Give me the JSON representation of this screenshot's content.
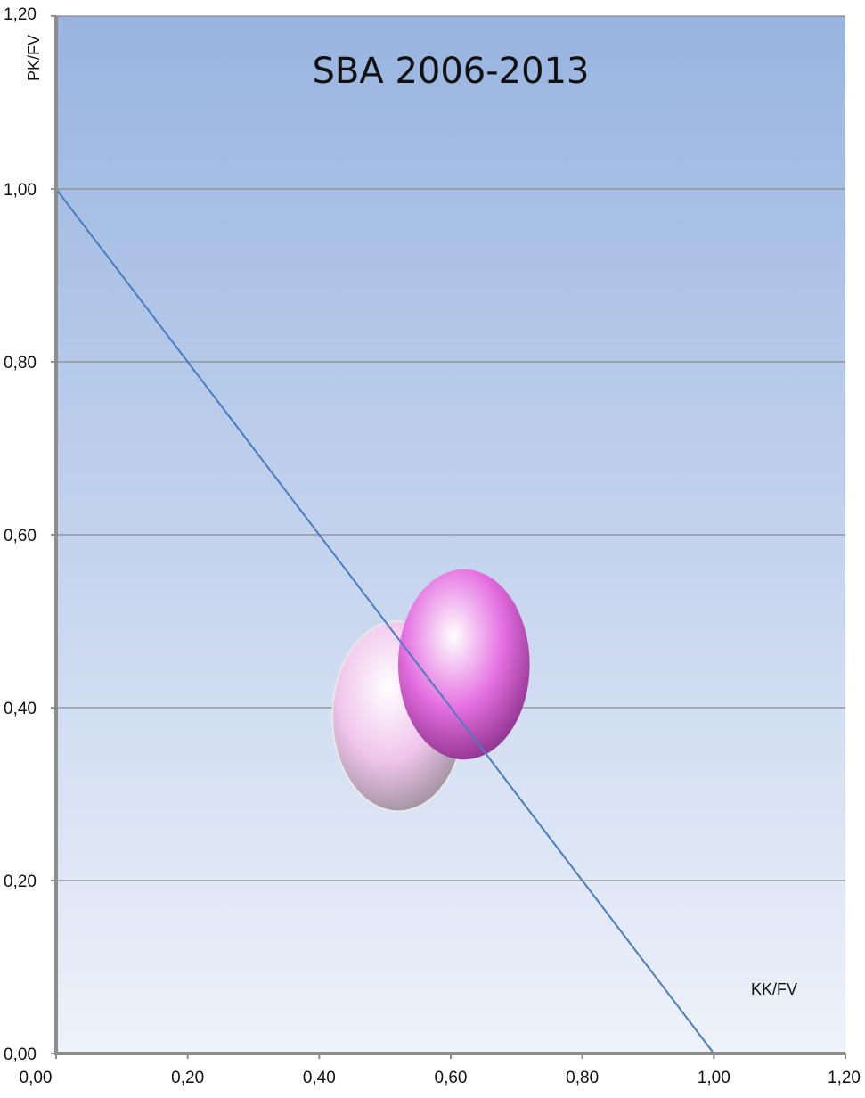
{
  "chart_data": {
    "type": "scatter",
    "title": "SBA 2006-2013",
    "xlabel": "KK/FV",
    "ylabel": "PK/FV",
    "xlim": [
      0,
      1.2
    ],
    "ylim": [
      0,
      1.2
    ],
    "x_ticks": [
      0,
      0.2,
      0.4,
      0.6,
      0.8,
      1.0,
      1.2
    ],
    "y_ticks": [
      0,
      0.2,
      0.4,
      0.6,
      0.8,
      1.0,
      1.2
    ],
    "x_tick_labels": [
      "0,00",
      "0,20",
      "0,40",
      "0,60",
      "0,80",
      "1,00",
      "1,20"
    ],
    "y_tick_labels": [
      "0,00",
      "0,20",
      "0,40",
      "0,60",
      "0,80",
      "1,00",
      "1,20"
    ],
    "grid": true,
    "bubbles": [
      {
        "x": 0.52,
        "y": 0.39,
        "rx": 0.1,
        "ry": 0.11,
        "color": "#f0c4ec"
      },
      {
        "x": 0.62,
        "y": 0.45,
        "rx": 0.1,
        "ry": 0.11,
        "color": "#e46ee0"
      }
    ],
    "reference_line": {
      "points": [
        [
          0,
          1.0
        ],
        [
          1.0,
          0
        ]
      ],
      "color": "#4a7cc0"
    },
    "colors": {
      "background_top": "#98b4e0",
      "background_bottom": "#eef2fa",
      "gridline": "#8a8a8a",
      "axis": "#8c8c8c"
    }
  }
}
